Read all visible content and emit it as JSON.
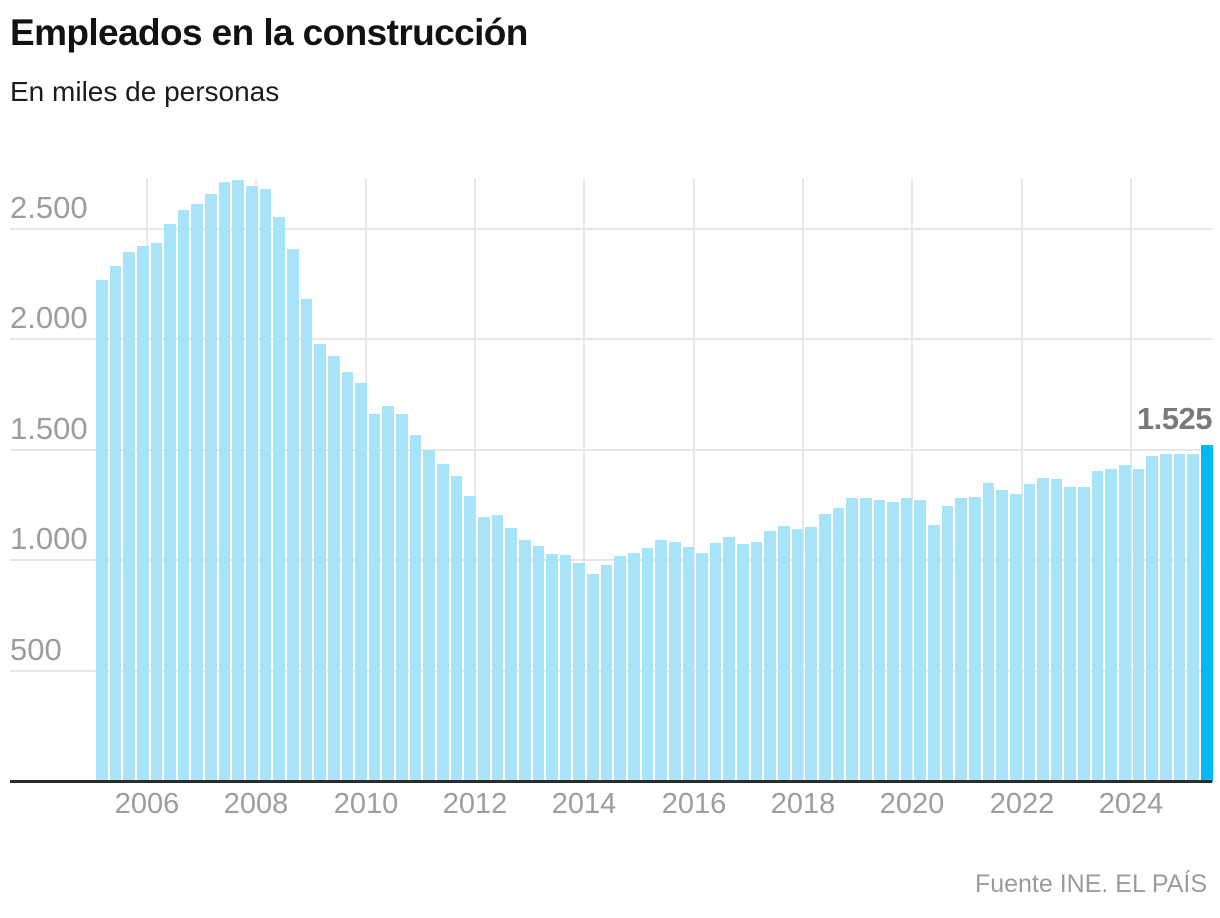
{
  "header": {
    "title": "Empleados en la construcción",
    "subtitle": "En miles de personas"
  },
  "footer": {
    "source": "Fuente INE. EL PAÍS"
  },
  "colors": {
    "bar": "#a7e4f9",
    "highlight": "#00b9f2",
    "grid": "#e7e7e7",
    "axis": "#2b2b2b",
    "tick_label": "#9d9d9d",
    "value_label": "#7a7a7a",
    "title": "#121212",
    "subtitle": "#1c1c1c",
    "source": "#9b9b9b"
  },
  "chart_data": {
    "type": "bar",
    "title": "Empleados en la construcción",
    "subtitle": "En miles de personas",
    "unit": "miles de personas",
    "ylim": [
      0,
      2733
    ],
    "grid": true,
    "y_ticks": [
      500,
      1000,
      1500,
      2000,
      2500
    ],
    "y_tick_labels": [
      "500",
      "1.000",
      "1.500",
      "2.000",
      "2.500"
    ],
    "x_tick_years": [
      "2006",
      "2008",
      "2010",
      "2012",
      "2014",
      "2016",
      "2018",
      "2020",
      "2022",
      "2024"
    ],
    "x": [
      "2005-T1",
      "2005-T2",
      "2005-T3",
      "2005-T4",
      "2006-T1",
      "2006-T2",
      "2006-T3",
      "2006-T4",
      "2007-T1",
      "2007-T2",
      "2007-T3",
      "2007-T4",
      "2008-T1",
      "2008-T2",
      "2008-T3",
      "2008-T4",
      "2009-T1",
      "2009-T2",
      "2009-T3",
      "2009-T4",
      "2010-T1",
      "2010-T2",
      "2010-T3",
      "2010-T4",
      "2011-T1",
      "2011-T2",
      "2011-T3",
      "2011-T4",
      "2012-T1",
      "2012-T2",
      "2012-T3",
      "2012-T4",
      "2013-T1",
      "2013-T2",
      "2013-T3",
      "2013-T4",
      "2014-T1",
      "2014-T2",
      "2014-T3",
      "2014-T4",
      "2015-T1",
      "2015-T2",
      "2015-T3",
      "2015-T4",
      "2016-T1",
      "2016-T2",
      "2016-T3",
      "2016-T4",
      "2017-T1",
      "2017-T2",
      "2017-T3",
      "2017-T4",
      "2018-T1",
      "2018-T2",
      "2018-T3",
      "2018-T4",
      "2019-T1",
      "2019-T2",
      "2019-T3",
      "2019-T4",
      "2020-T1",
      "2020-T2",
      "2020-T3",
      "2020-T4",
      "2021-T1",
      "2021-T2",
      "2021-T3",
      "2021-T4",
      "2022-T1",
      "2022-T2",
      "2022-T3",
      "2022-T4",
      "2023-T1",
      "2023-T2",
      "2023-T3",
      "2023-T4",
      "2024-T1",
      "2024-T2",
      "2024-T3",
      "2024-T4",
      "2025-T1",
      "2025-T2"
    ],
    "values": [
      2270,
      2337,
      2399,
      2424,
      2440,
      2523,
      2590,
      2616,
      2661,
      2716,
      2723,
      2699,
      2682,
      2556,
      2414,
      2186,
      1984,
      1927,
      1854,
      1806,
      1666,
      1700,
      1666,
      1572,
      1500,
      1440,
      1384,
      1293,
      1200,
      1207,
      1150,
      1093,
      1066,
      1030,
      1028,
      993,
      942,
      981,
      1022,
      1035,
      1060,
      1094,
      1084,
      1064,
      1034,
      1081,
      1109,
      1079,
      1084,
      1134,
      1158,
      1146,
      1152,
      1213,
      1242,
      1283,
      1283,
      1278,
      1266,
      1283,
      1278,
      1165,
      1248,
      1284,
      1289,
      1352,
      1322,
      1305,
      1348,
      1375,
      1369,
      1337,
      1337,
      1406,
      1415,
      1435,
      1417,
      1476,
      1483,
      1485,
      1483,
      1525
    ],
    "highlight_index": 81,
    "highlight_value_label": "1.525",
    "legend": "none"
  }
}
